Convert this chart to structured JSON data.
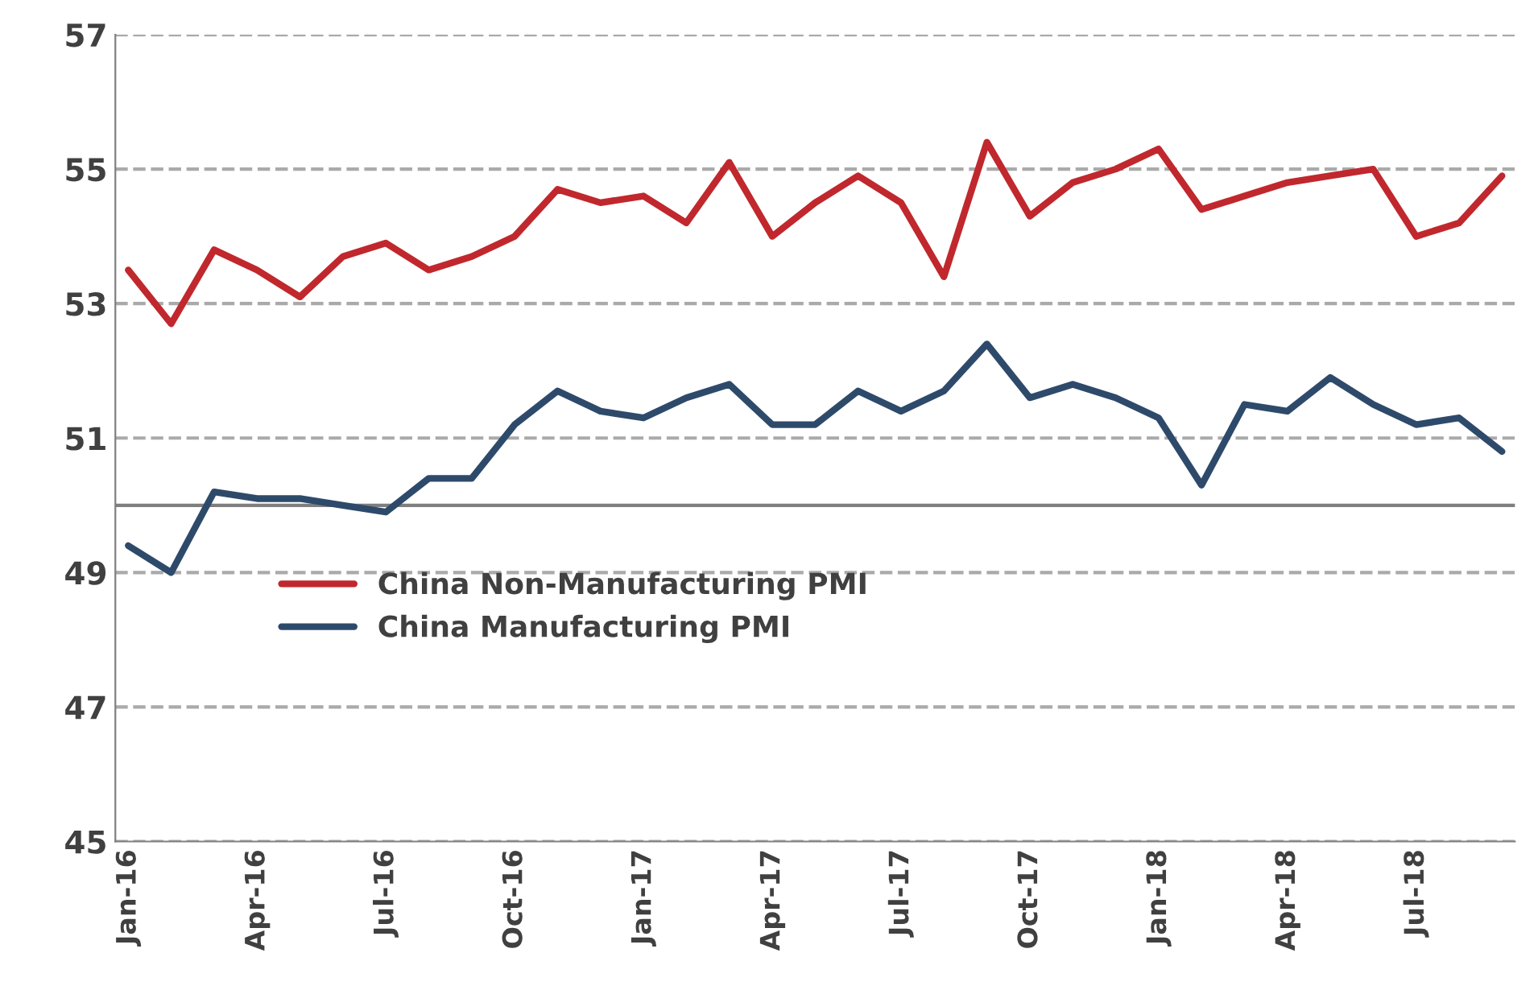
{
  "chart_data": {
    "type": "line",
    "categories": [
      "Jan-16",
      null,
      null,
      "Apr-16",
      null,
      null,
      "Jul-16",
      null,
      null,
      "Oct-16",
      null,
      null,
      "Jan-17",
      null,
      null,
      "Apr-17",
      null,
      null,
      "Jul-17",
      null,
      null,
      "Oct-17",
      null,
      null,
      "Jan-18",
      null,
      null,
      "Apr-18",
      null,
      null,
      "Jul-18",
      null,
      null
    ],
    "series": [
      {
        "name": "China Non-Manufacturing PMI",
        "color": "#c0282d",
        "values": [
          53.5,
          52.7,
          53.8,
          53.5,
          53.1,
          53.7,
          53.9,
          53.5,
          53.7,
          54.0,
          54.7,
          54.5,
          54.6,
          54.2,
          55.1,
          54.0,
          54.5,
          54.9,
          54.5,
          53.4,
          55.4,
          54.3,
          54.8,
          55.0,
          55.3,
          54.4,
          54.6,
          54.8,
          54.9,
          55.0,
          54.0,
          54.2,
          54.9
        ]
      },
      {
        "name": "China Manufacturing PMI",
        "color": "#2e4a6b",
        "values": [
          49.4,
          49.0,
          50.2,
          50.1,
          50.1,
          50.0,
          49.9,
          50.4,
          50.4,
          51.2,
          51.7,
          51.4,
          51.3,
          51.6,
          51.8,
          51.2,
          51.2,
          51.7,
          51.4,
          51.7,
          52.4,
          51.6,
          51.8,
          51.6,
          51.3,
          50.3,
          51.5,
          51.4,
          51.9,
          51.5,
          51.2,
          51.3,
          50.8
        ]
      }
    ],
    "ylim": [
      45,
      57
    ],
    "yticks": [
      45,
      47,
      49,
      51,
      53,
      55,
      57
    ],
    "grid": "y",
    "legend": "left",
    "marker": "none",
    "line_style": "solid",
    "ref_lines": [
      {
        "axis": "y",
        "value": 50,
        "label": null,
        "color": "#7f7f7f"
      }
    ]
  }
}
